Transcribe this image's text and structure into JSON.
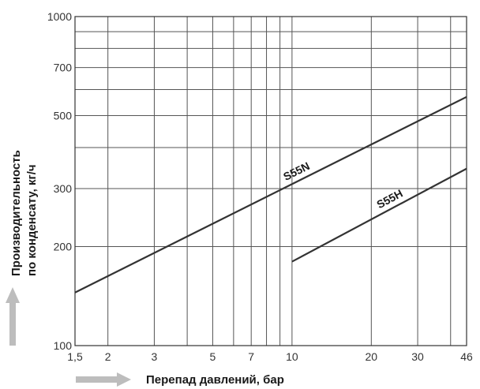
{
  "chart_data": {
    "type": "line",
    "x_scale": "log",
    "y_scale": "log",
    "xlim": [
      1.5,
      46
    ],
    "ylim": [
      100,
      1000
    ],
    "xlabel": "Перепад давлений, бар",
    "ylabel_line1": "Производительность",
    "ylabel_line2": "по конденсату, кг/ч",
    "x_ticks": [
      {
        "value": 1.5,
        "label": "1,5"
      },
      {
        "value": 2,
        "label": "2"
      },
      {
        "value": 3,
        "label": "3"
      },
      {
        "value": 5,
        "label": "5"
      },
      {
        "value": 7,
        "label": "7"
      },
      {
        "value": 10,
        "label": "10"
      },
      {
        "value": 20,
        "label": "20"
      },
      {
        "value": 30,
        "label": "30"
      },
      {
        "value": 46,
        "label": "46"
      }
    ],
    "x_grid": [
      1.5,
      2,
      3,
      4,
      5,
      6,
      7,
      8,
      9,
      10,
      20,
      30,
      40,
      46
    ],
    "y_ticks": [
      {
        "value": 100,
        "label": "100"
      },
      {
        "value": 200,
        "label": "200"
      },
      {
        "value": 300,
        "label": "300"
      },
      {
        "value": 500,
        "label": "500"
      },
      {
        "value": 700,
        "label": "700"
      },
      {
        "value": 1000,
        "label": "1000"
      }
    ],
    "y_grid": [
      100,
      200,
      300,
      400,
      500,
      600,
      700,
      800,
      900,
      1000
    ],
    "series": [
      {
        "name": "S55N",
        "x": [
          1.5,
          46
        ],
        "y": [
          145,
          570
        ]
      },
      {
        "name": "S55H",
        "x": [
          10,
          46
        ],
        "y": [
          180,
          345
        ]
      }
    ],
    "grid": true,
    "colors": {
      "line": "#333333",
      "grid": "#555555",
      "arrow": "#bdbdbd"
    }
  }
}
